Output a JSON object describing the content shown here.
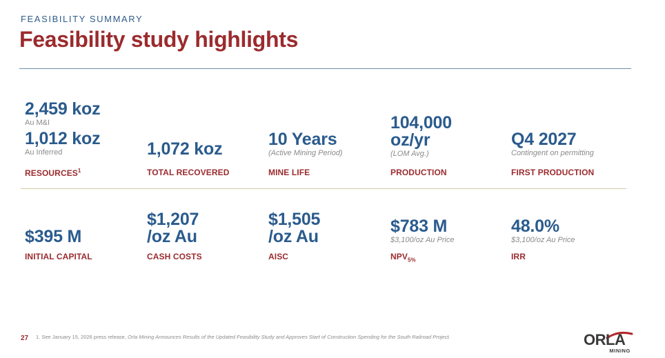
{
  "header": {
    "eyebrow": "FEASIBILITY SUMMARY",
    "title": "Feasibility study highlights"
  },
  "row1": {
    "resources": {
      "value_1": "2,459 koz",
      "sub_1": "Au M&I",
      "value_2": "1,012 koz",
      "sub_2": "Au Inferred",
      "label": "RESOURCES",
      "label_sup": "1"
    },
    "total_recovered": {
      "value": "1,072 koz",
      "label": "TOTAL RECOVERED"
    },
    "mine_life": {
      "value": "10 Years",
      "sub": "(Active Mining Period)",
      "label": "MINE LIFE"
    },
    "production": {
      "value_line1": "104,000",
      "value_line2": "oz/yr",
      "sub": "(LOM Avg.)",
      "label": "PRODUCTION"
    },
    "first_production": {
      "value": "Q4 2027",
      "sub": "Contingent on permitting",
      "label": "FIRST PRODUCTION"
    }
  },
  "row2": {
    "initial_capital": {
      "value": "$395 M",
      "label": "INITIAL CAPITAL"
    },
    "cash_costs": {
      "value_line1": "$1,207",
      "value_line2": "/oz Au",
      "label": "CASH COSTS"
    },
    "aisc": {
      "value_line1": "$1,505",
      "value_line2": "/oz Au",
      "label": "AISC"
    },
    "npv": {
      "value": "$783 M",
      "sub": "$3,100/oz Au Price",
      "label": "NPV",
      "label_sub": "5%"
    },
    "irr": {
      "value": "48.0%",
      "sub": "$3,100/oz Au Price",
      "label": "IRR"
    }
  },
  "footer": {
    "page_number": "27",
    "footnote_prefix": "1.  See January 15, 2026 press release, ",
    "footnote_title": "Orla Mining Announces Results of the Updated Feasibility Study and Approves Start of Construction Spending for the South Railroad Project.",
    "logo_text": "ORLA",
    "logo_sub": "MINING"
  },
  "colors": {
    "title_red": "#9b2b2e",
    "value_blue": "#2a5b8d",
    "eyebrow_blue": "#2f5c8a",
    "rule_blue": "#6e8fa9",
    "rule_tan": "#d8c9a8",
    "logo_swoosh": "#b2282c"
  }
}
